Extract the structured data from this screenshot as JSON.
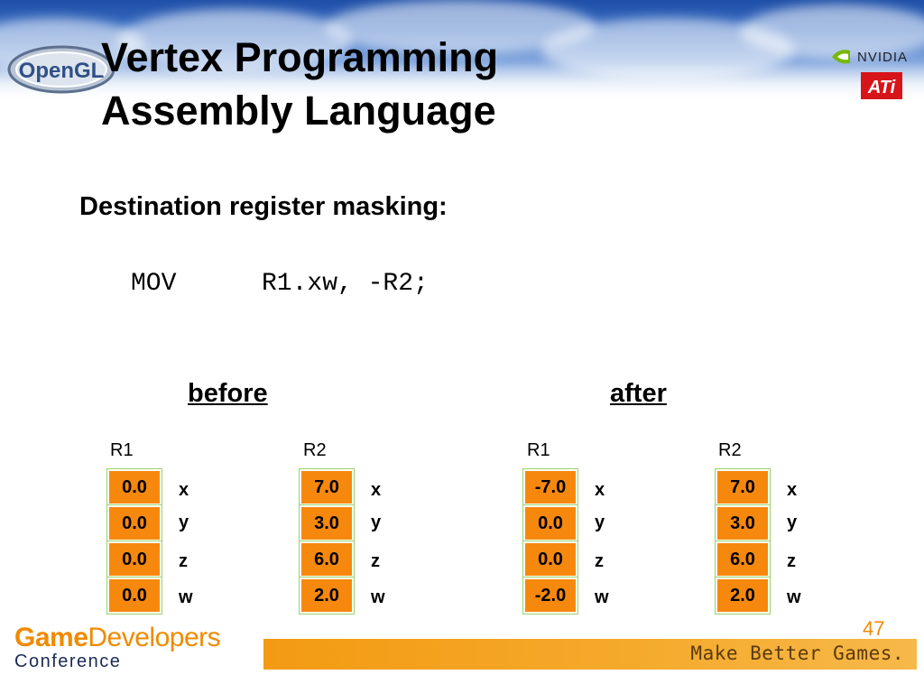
{
  "slide": {
    "title_line1": "Vertex Programming",
    "title_line2": "Assembly Language",
    "subtitle": "Destination register masking:",
    "code_op": "MOV",
    "code_args": "R1.xw, -R2;",
    "page_number": "47"
  },
  "logos": {
    "opengl": "OpenGL",
    "nvidia": "NVIDIA",
    "ati": "ATi",
    "gdc_game": "Game",
    "gdc_developers": "Developers",
    "gdc_conference": "Conference",
    "tagline": "Make Better Games."
  },
  "sections": [
    {
      "heading": "before",
      "registers": [
        {
          "name": "R1",
          "values": [
            "0.0",
            "0.0",
            "0.0",
            "0.0"
          ]
        },
        {
          "name": "R2",
          "values": [
            "7.0",
            "3.0",
            "6.0",
            "2.0"
          ]
        }
      ]
    },
    {
      "heading": "after",
      "registers": [
        {
          "name": "R1",
          "values": [
            "-7.0",
            "0.0",
            "0.0",
            "-2.0"
          ]
        },
        {
          "name": "R2",
          "values": [
            "7.0",
            "3.0",
            "6.0",
            "2.0"
          ]
        }
      ]
    }
  ],
  "components": [
    "x",
    "y",
    "z",
    "w"
  ],
  "colors": {
    "cell_fill": "#f7880e",
    "accent_orange": "#f08a00",
    "tagline_bar": "#f5a623"
  }
}
